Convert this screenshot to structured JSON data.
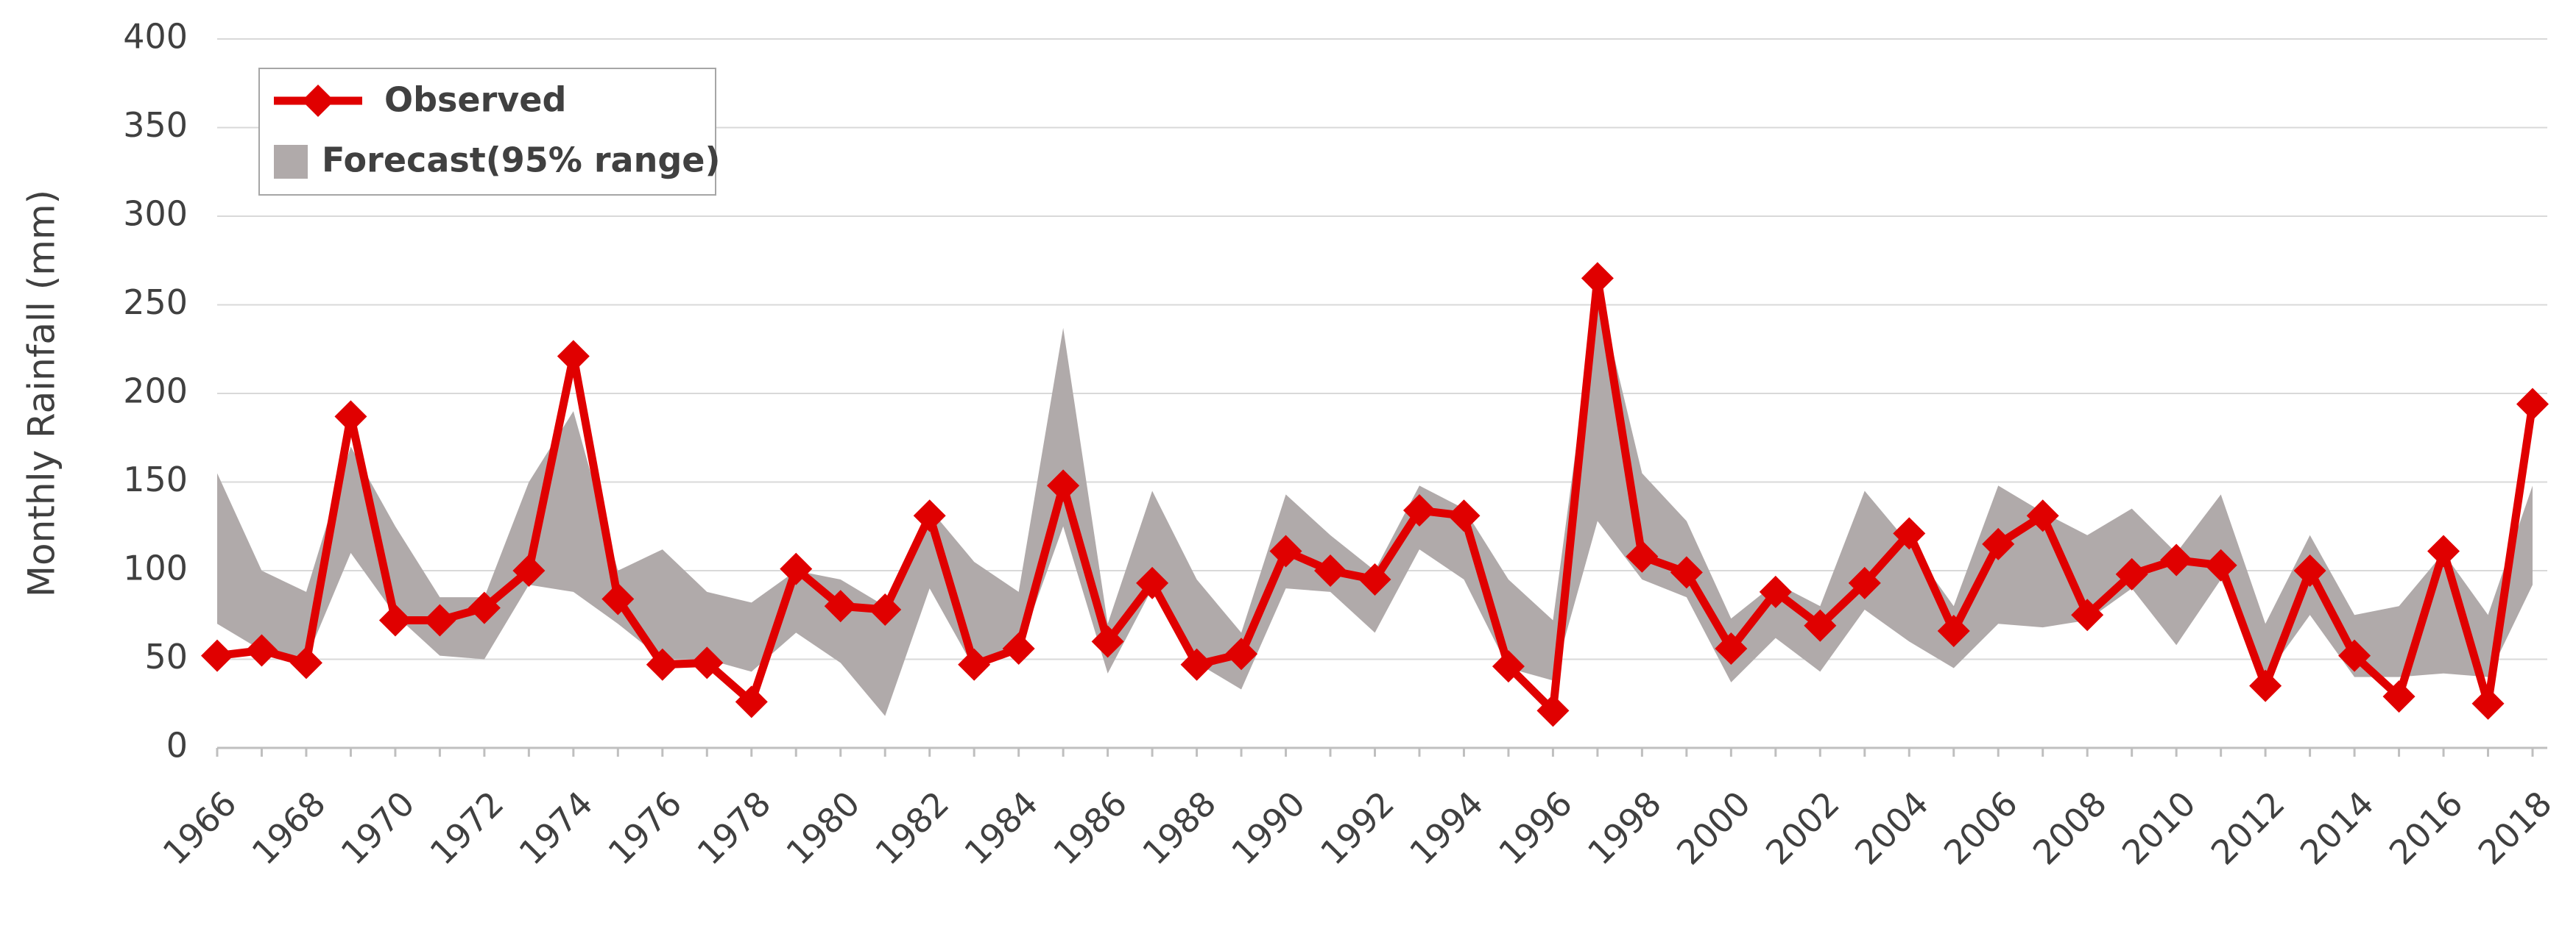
{
  "chart_data": {
    "type": "line",
    "y_label": "Monthly Rainfall (mm)",
    "x": [
      1966,
      1967,
      1968,
      1969,
      1970,
      1971,
      1972,
      1973,
      1974,
      1975,
      1976,
      1977,
      1978,
      1979,
      1980,
      1981,
      1982,
      1983,
      1984,
      1985,
      1986,
      1987,
      1988,
      1989,
      1990,
      1991,
      1992,
      1993,
      1994,
      1995,
      1996,
      1997,
      1998,
      1999,
      2000,
      2001,
      2002,
      2003,
      2004,
      2005,
      2006,
      2007,
      2008,
      2009,
      2010,
      2011,
      2012,
      2013,
      2014,
      2015,
      2016,
      2017,
      2018
    ],
    "series": [
      {
        "name": "Observed",
        "color": "#e00000",
        "values": [
          52,
          55,
          48,
          187,
          72,
          72,
          79,
          100,
          221,
          84,
          47,
          48,
          26,
          101,
          80,
          78,
          131,
          47,
          56,
          148,
          60,
          93,
          47,
          53,
          111,
          100,
          95,
          134,
          131,
          46,
          21,
          265,
          108,
          99,
          56,
          88,
          69,
          93,
          121,
          66,
          115,
          131,
          75,
          98,
          106,
          103,
          35,
          100,
          52,
          29,
          111,
          25,
          194
        ]
      },
      {
        "name": "Forecast(95% range)",
        "color": "#b0aaaa",
        "lower": [
          70,
          55,
          50,
          110,
          75,
          52,
          50,
          92,
          88,
          70,
          50,
          50,
          43,
          65,
          48,
          18,
          90,
          45,
          55,
          125,
          42,
          90,
          48,
          33,
          90,
          88,
          65,
          112,
          95,
          45,
          38,
          128,
          95,
          85,
          37,
          62,
          43,
          78,
          60,
          45,
          70,
          68,
          72,
          90,
          58,
          95,
          40,
          75,
          40,
          40,
          42,
          40,
          92
        ],
        "upper": [
          155,
          100,
          88,
          170,
          125,
          85,
          85,
          150,
          190,
          100,
          112,
          88,
          82,
          100,
          95,
          80,
          135,
          105,
          88,
          237,
          70,
          145,
          95,
          65,
          143,
          120,
          100,
          148,
          135,
          95,
          72,
          260,
          155,
          128,
          73,
          93,
          80,
          145,
          115,
          80,
          148,
          133,
          120,
          135,
          110,
          143,
          70,
          120,
          75,
          80,
          110,
          75,
          148
        ]
      }
    ],
    "xlim": [
      1966,
      2018
    ],
    "xticks": [
      1966,
      1968,
      1970,
      1972,
      1974,
      1976,
      1978,
      1980,
      1982,
      1984,
      1986,
      1988,
      1990,
      1992,
      1994,
      1996,
      1998,
      2000,
      2002,
      2004,
      2006,
      2008,
      2010,
      2012,
      2014,
      2016,
      2018
    ],
    "ylim": [
      0,
      400
    ],
    "yticks": [
      0,
      50,
      100,
      150,
      200,
      250,
      300,
      350,
      400
    ],
    "grid": true,
    "legend": "top-left"
  }
}
